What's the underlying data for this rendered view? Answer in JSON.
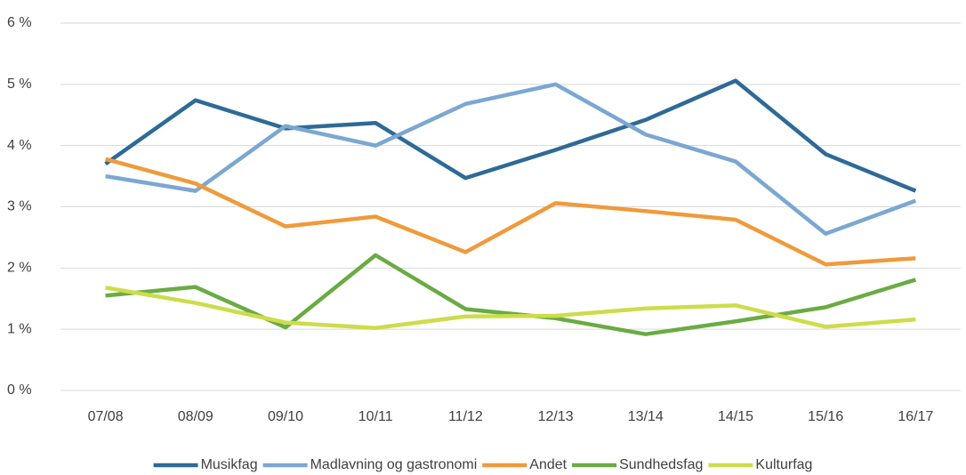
{
  "chart_data": {
    "type": "line",
    "categories": [
      "07/08",
      "08/09",
      "09/10",
      "10/11",
      "11/12",
      "12/13",
      "13/14",
      "14/15",
      "15/16",
      "16/17"
    ],
    "series": [
      {
        "name": "Musikfag",
        "color": "#2e6a97",
        "values": [
          3.7,
          4.74,
          4.28,
          4.37,
          3.47,
          3.93,
          4.42,
          5.06,
          3.86,
          3.26
        ]
      },
      {
        "name": "Madlavning og gastronomi",
        "color": "#7ba7d1",
        "values": [
          3.5,
          3.26,
          4.32,
          4.0,
          4.68,
          5.0,
          4.18,
          3.74,
          2.56,
          3.1
        ]
      },
      {
        "name": "Andet",
        "color": "#ef9a3c",
        "values": [
          3.78,
          3.38,
          2.68,
          2.84,
          2.26,
          3.06,
          2.93,
          2.79,
          2.06,
          2.16
        ]
      },
      {
        "name": "Sundhedsfag",
        "color": "#6aab44",
        "values": [
          1.55,
          1.69,
          1.03,
          2.21,
          1.33,
          1.18,
          0.92,
          1.13,
          1.36,
          1.81
        ]
      },
      {
        "name": "Kulturfag",
        "color": "#cddc4a",
        "values": [
          1.68,
          1.43,
          1.11,
          1.02,
          1.21,
          1.22,
          1.34,
          1.39,
          1.04,
          1.16
        ]
      }
    ],
    "ylim": [
      0,
      6
    ],
    "yticks": [
      {
        "value": 0,
        "label": "0 %"
      },
      {
        "value": 1,
        "label": "1 %"
      },
      {
        "value": 2,
        "label": "2 %"
      },
      {
        "value": 3,
        "label": "3 %"
      },
      {
        "value": 4,
        "label": "4 %"
      },
      {
        "value": 5,
        "label": "5 %"
      },
      {
        "value": 6,
        "label": "6 %"
      }
    ],
    "grid": true,
    "legend": "bottom"
  }
}
